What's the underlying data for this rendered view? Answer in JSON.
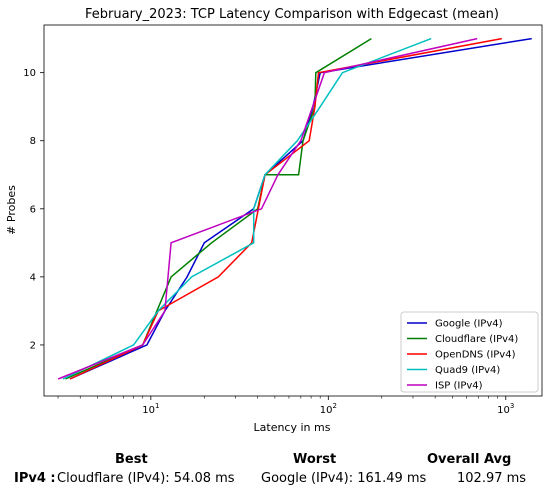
{
  "chart_data": {
    "type": "line",
    "title": "February_2023: TCP Latency Comparison with Edgecast (mean)",
    "xlabel": "Latency in ms",
    "ylabel": "# Probes",
    "xscale": "log",
    "xlim": [
      2.5,
      1600
    ],
    "ylim": [
      0.5,
      11.4
    ],
    "xticks": [
      {
        "value": 10,
        "label": "10"
      },
      {
        "value": 100,
        "label": "10"
      },
      {
        "value": 1000,
        "label": "10"
      }
    ],
    "xtick_exponents": [
      "1",
      "2",
      "3"
    ],
    "yticks": [
      2,
      4,
      6,
      8,
      10
    ],
    "legend_position": "lower-right",
    "grid": false,
    "series": [
      {
        "name": "Google (IPv4)",
        "color": "#0000cc",
        "x": [
          3.5,
          9.5,
          12,
          16,
          20,
          38,
          44,
          72,
          82,
          90,
          1400
        ],
        "y": [
          1,
          2,
          3,
          4,
          5,
          6,
          7,
          8,
          9,
          10,
          11
        ]
      },
      {
        "name": "Cloudflare (IPv4)",
        "color": "#008000",
        "x": [
          3.3,
          9,
          13,
          22,
          40,
          44,
          68,
          72,
          84,
          85,
          175
        ],
        "y": [
          1,
          2,
          4,
          5,
          6,
          7,
          7,
          8,
          9,
          10,
          11
        ]
      },
      {
        "name": "OpenDNS (IPv4)",
        "color": "#ff0000",
        "x": [
          3.5,
          9,
          11,
          24,
          37,
          44,
          78,
          84,
          88,
          950
        ],
        "y": [
          1,
          2,
          3,
          4,
          5,
          7,
          8,
          9,
          10,
          11
        ]
      },
      {
        "name": "Quad9 (IPv4)",
        "color": "#00bfbf",
        "x": [
          3.2,
          8,
          11,
          17,
          38,
          38,
          44,
          67,
          90,
          120,
          380
        ],
        "y": [
          1,
          2,
          3,
          4,
          5,
          6,
          7,
          8,
          9,
          10,
          11
        ]
      },
      {
        "name": "ISP (IPv4)",
        "color": "#bf00bf",
        "x": [
          3,
          9,
          12,
          13,
          42,
          52,
          70,
          95,
          690
        ],
        "y": [
          1,
          2,
          3,
          5,
          6,
          7,
          8,
          10,
          11
        ]
      }
    ]
  },
  "stats": {
    "best_header": "Best",
    "worst_header": "Worst",
    "avg_header": "Overall Avg",
    "row_label": "IPv4 :",
    "best_value": "Cloudflare (IPv4): 54.08 ms",
    "worst_value": "Google (IPv4): 161.49 ms",
    "avg_value": "102.97 ms"
  }
}
